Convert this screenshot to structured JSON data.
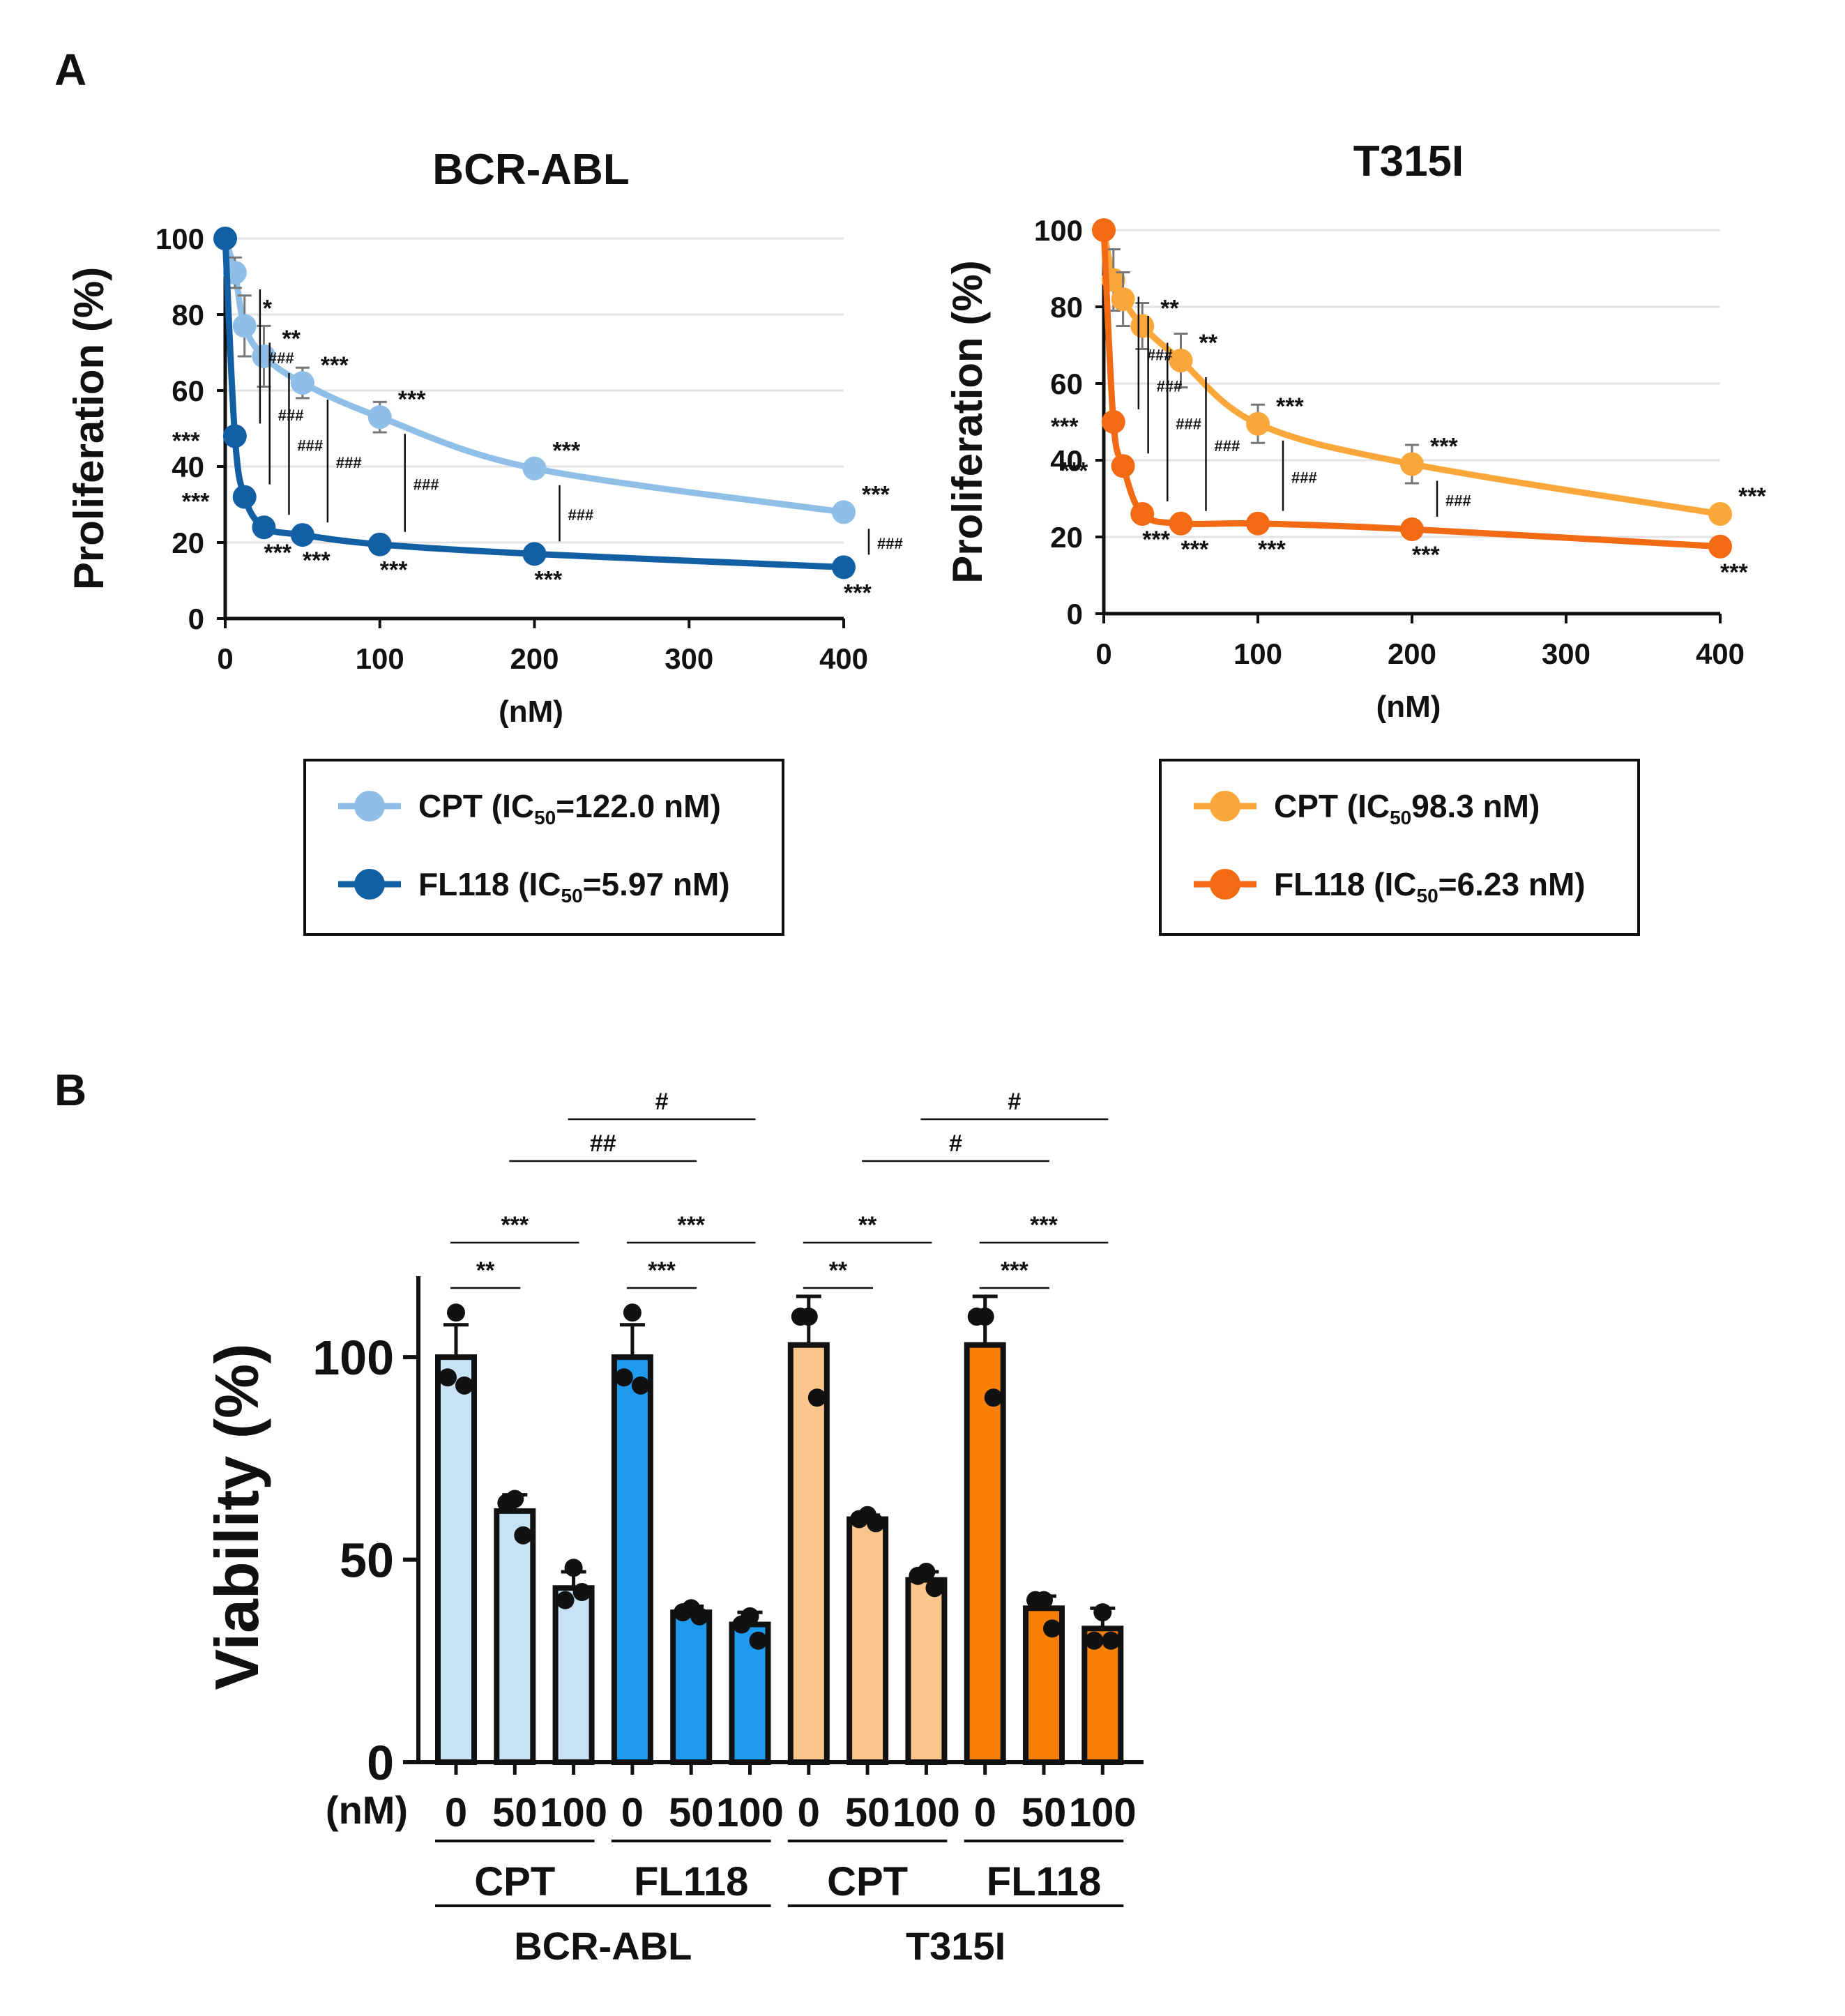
{
  "panel_labels": {
    "a": "A",
    "b": "B"
  },
  "colors": {
    "bcr_cpt": "#8fbfe6",
    "bcr_fl118": "#135fa3",
    "t315_cpt": "#f9a73a",
    "t315_fl118": "#f26b14",
    "bar_bcr_cpt": "#c8e2f5",
    "bar_bcr_fl118": "#1e9bef",
    "bar_t315_cpt": "#fbc68c",
    "bar_t315_fl118": "#f97f06",
    "grid": "#e3e3e3",
    "error": "#777777",
    "ink": "#111111"
  },
  "chart_data": [
    {
      "id": "bcr",
      "type": "line",
      "title": "BCR-ABL",
      "xlabel": "(nM)",
      "ylabel": "Proliferation (%)",
      "xlim": [
        0,
        400
      ],
      "ylim": [
        0,
        100
      ],
      "x_ticks": [
        "0",
        "100",
        "200",
        "300",
        "400"
      ],
      "y_ticks": [
        "0",
        "20",
        "40",
        "60",
        "80",
        "100"
      ],
      "grid": true,
      "series": [
        {
          "name": "CPT",
          "legend_prefix": "CPT (IC",
          "legend_sub": "50",
          "legend_suffix": "=122.0  nM)",
          "x": [
            0,
            6.25,
            12.5,
            25,
            50,
            100,
            200,
            400
          ],
          "y": [
            100,
            91,
            77,
            69,
            62,
            53,
            39.5,
            28
          ],
          "err": [
            0,
            4,
            8,
            8,
            4,
            4,
            1.5,
            1.5
          ],
          "sig": [
            "",
            "",
            "*",
            "**",
            "***",
            "***",
            "***",
            "***"
          ]
        },
        {
          "name": "FL118",
          "legend_prefix": "FL118  (IC",
          "legend_sub": "50",
          "legend_suffix": "=5.97  nM)",
          "x": [
            0,
            6.25,
            12.5,
            25,
            50,
            100,
            200,
            400
          ],
          "y": [
            100,
            48,
            32,
            24,
            22,
            19.5,
            17,
            13.5
          ],
          "err": [
            0,
            1,
            1,
            1,
            1,
            1,
            1,
            1
          ],
          "sig": [
            "",
            "***",
            "***",
            "***",
            "***",
            "***",
            "***",
            "***"
          ]
        }
      ],
      "between_marks": [
        "###",
        "###",
        "###",
        "###",
        "###",
        "###",
        "###"
      ]
    },
    {
      "id": "t315",
      "type": "line",
      "title": "T315I",
      "xlabel": "(nM)",
      "ylabel": "Proliferation (%)",
      "xlim": [
        0,
        400
      ],
      "ylim": [
        0,
        100
      ],
      "x_ticks": [
        "0",
        "100",
        "200",
        "300",
        "400"
      ],
      "y_ticks": [
        "0",
        "20",
        "40",
        "60",
        "80",
        "100"
      ],
      "grid": true,
      "series": [
        {
          "name": "CPT",
          "legend_prefix": "CPT (IC",
          "legend_sub": "50",
          "legend_suffix": "98.3  nM)",
          "x": [
            0,
            6.25,
            12.5,
            25,
            50,
            100,
            200,
            400
          ],
          "y": [
            100,
            87,
            82,
            75,
            66,
            49.5,
            39,
            26
          ],
          "err": [
            0,
            8,
            7,
            6,
            7,
            5,
            5,
            1.5
          ],
          "sig": [
            "",
            "",
            "",
            "**",
            "**",
            "***",
            "***",
            "***"
          ]
        },
        {
          "name": "FL118",
          "legend_prefix": "FL118  (IC",
          "legend_sub": "50",
          "legend_suffix": "=6.23  nM)",
          "x": [
            0,
            6.25,
            12.5,
            25,
            50,
            100,
            200,
            400
          ],
          "y": [
            100,
            50,
            38.5,
            26,
            23.5,
            23.5,
            22,
            17.5
          ],
          "err": [
            0,
            1,
            1,
            1,
            1,
            1,
            1,
            1
          ],
          "sig": [
            "",
            "***",
            "***",
            "***",
            "***",
            "***",
            "***",
            "***"
          ]
        }
      ],
      "between_marks": [
        "###",
        "###",
        "###",
        "###",
        "###",
        "###"
      ]
    },
    {
      "id": "viability",
      "type": "bar",
      "ylabel": "Viability (%)",
      "ylim": [
        0,
        120
      ],
      "y_ticks": [
        "0",
        "50",
        "100"
      ],
      "unit_label": "(nM)",
      "categories": [
        "0",
        "50",
        "100",
        "0",
        "50",
        "100",
        "0",
        "50",
        "100",
        "0",
        "50",
        "100"
      ],
      "groups": [
        "CPT",
        "FL118",
        "CPT",
        "FL118"
      ],
      "supergroups": [
        "BCR-ABL",
        "T315I"
      ],
      "values": [
        100,
        62,
        43,
        100,
        37,
        34,
        103,
        60,
        45,
        103,
        38,
        33
      ],
      "errors": [
        8,
        4,
        4,
        8,
        1.5,
        3,
        12,
        1,
        2,
        12,
        3,
        5
      ],
      "points": [
        [
          111,
          95,
          93
        ],
        [
          65,
          64,
          56
        ],
        [
          48,
          40,
          42
        ],
        [
          111,
          95,
          93
        ],
        [
          38,
          37,
          36
        ],
        [
          36,
          34,
          30
        ],
        [
          110,
          110,
          90
        ],
        [
          61,
          60,
          59
        ],
        [
          47,
          46,
          43
        ],
        [
          110,
          110,
          90
        ],
        [
          40,
          40,
          33
        ],
        [
          37,
          30,
          30
        ]
      ],
      "comparisons": [
        {
          "from": 0,
          "to": 1,
          "label": "**"
        },
        {
          "from": 0,
          "to": 2,
          "label": "***"
        },
        {
          "from": 3,
          "to": 4,
          "label": "***"
        },
        {
          "from": 3,
          "to": 5,
          "label": "***"
        },
        {
          "from": 6,
          "to": 7,
          "label": "**"
        },
        {
          "from": 6,
          "to": 8,
          "label": "**"
        },
        {
          "from": 9,
          "to": 10,
          "label": "***"
        },
        {
          "from": 9,
          "to": 11,
          "label": "***"
        },
        {
          "from": 1,
          "to": 4,
          "label": "##"
        },
        {
          "from": 2,
          "to": 5,
          "label": "#"
        },
        {
          "from": 7,
          "to": 10,
          "label": "#"
        },
        {
          "from": 8,
          "to": 11,
          "label": "#"
        }
      ]
    }
  ]
}
